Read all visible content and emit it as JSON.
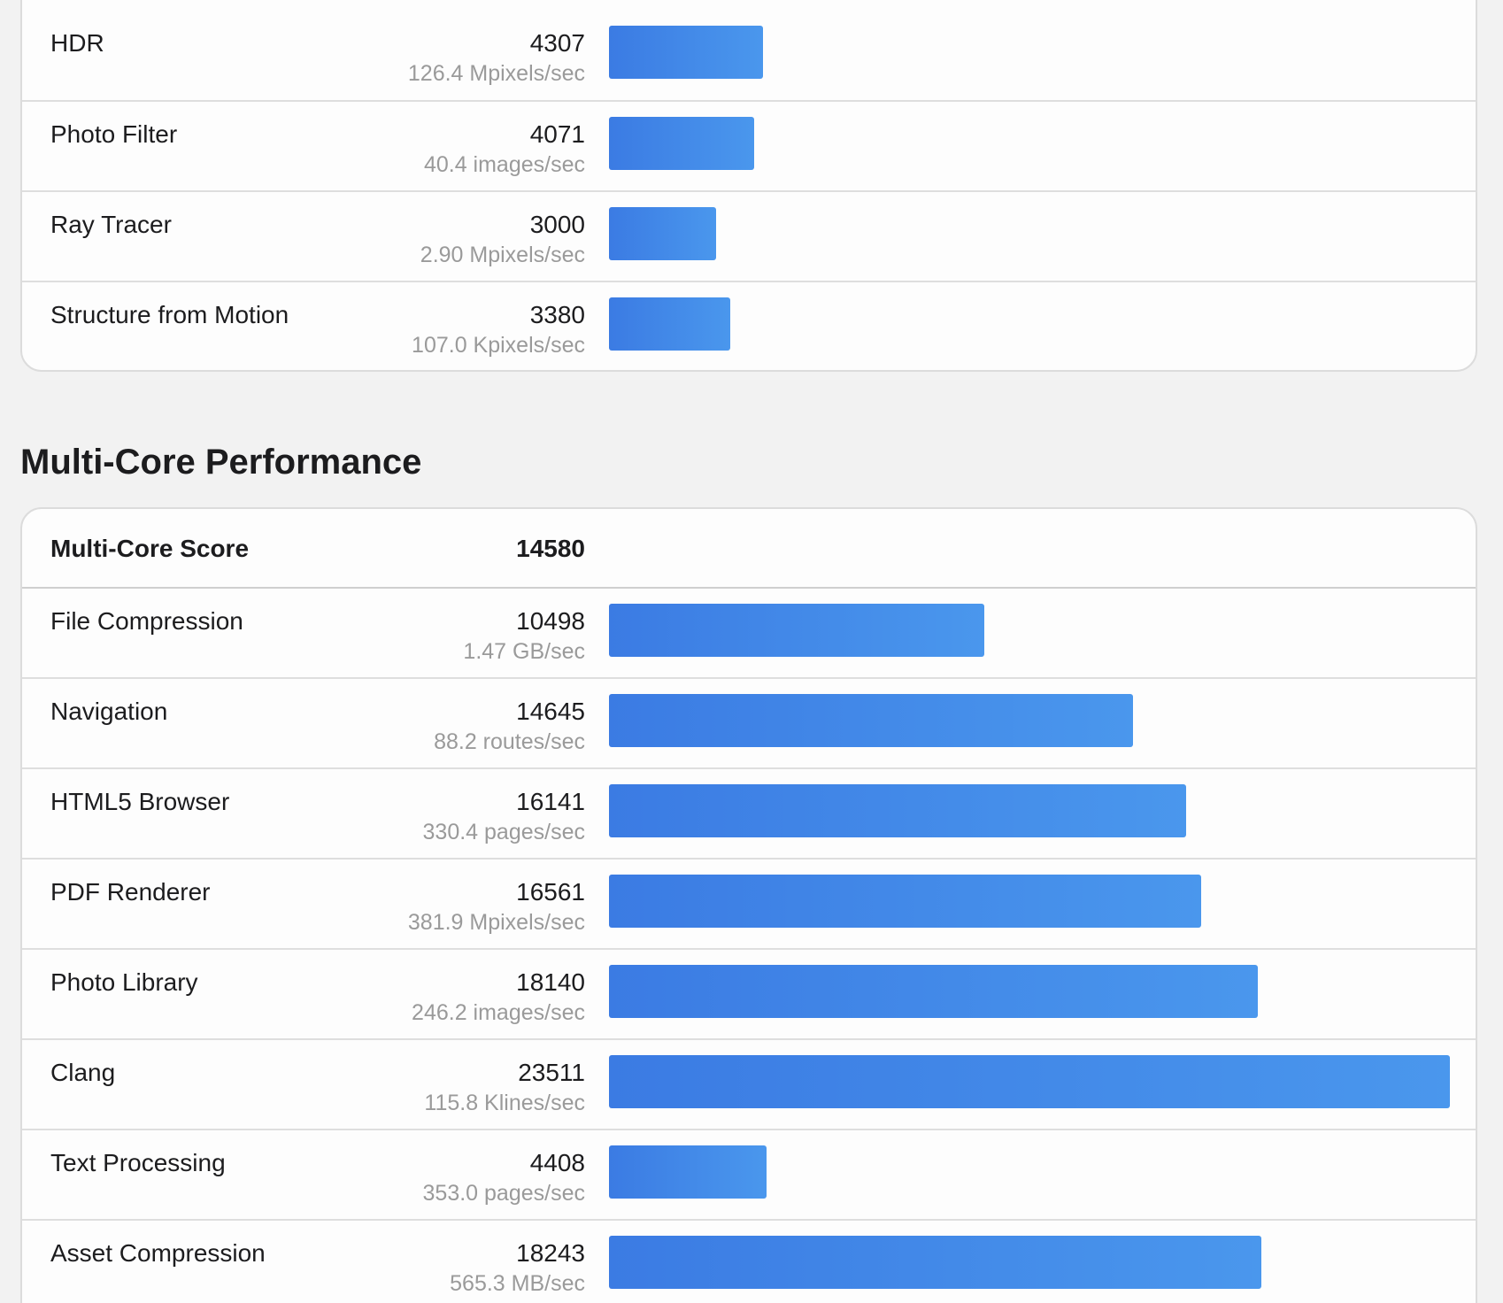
{
  "single_core_partial": {
    "rows": [
      {
        "name": "HDR",
        "score": "4307",
        "rate": "126.4 Mpixels/sec",
        "value": 4307
      },
      {
        "name": "Photo Filter",
        "score": "4071",
        "rate": "40.4 images/sec",
        "value": 4071
      },
      {
        "name": "Ray Tracer",
        "score": "3000",
        "rate": "2.90 Mpixels/sec",
        "value": 3000
      },
      {
        "name": "Structure from Motion",
        "score": "3380",
        "rate": "107.0 Kpixels/sec",
        "value": 3380
      }
    ]
  },
  "multi_core": {
    "title": "Multi-Core Performance",
    "score_label": "Multi-Core Score",
    "score_value": "14580",
    "rows": [
      {
        "name": "File Compression",
        "score": "10498",
        "rate": "1.47 GB/sec",
        "value": 10498
      },
      {
        "name": "Navigation",
        "score": "14645",
        "rate": "88.2 routes/sec",
        "value": 14645
      },
      {
        "name": "HTML5 Browser",
        "score": "16141",
        "rate": "330.4 pages/sec",
        "value": 16141
      },
      {
        "name": "PDF Renderer",
        "score": "16561",
        "rate": "381.9 Mpixels/sec",
        "value": 16561
      },
      {
        "name": "Photo Library",
        "score": "18140",
        "rate": "246.2 images/sec",
        "value": 18140
      },
      {
        "name": "Clang",
        "score": "23511",
        "rate": "115.8 Klines/sec",
        "value": 23511
      },
      {
        "name": "Text Processing",
        "score": "4408",
        "rate": "353.0 pages/sec",
        "value": 4408
      },
      {
        "name": "Asset Compression",
        "score": "18243",
        "rate": "565.3 MB/sec",
        "value": 18243
      }
    ]
  },
  "colors": {
    "bar_start": "#3b7be3",
    "bar_end": "#4a97ed",
    "background": "#f2f2f2"
  }
}
